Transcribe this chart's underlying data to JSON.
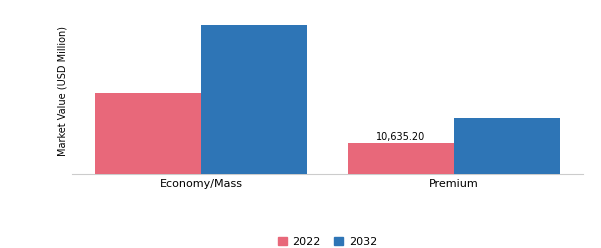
{
  "categories": [
    "Economy/Mass",
    "Premium"
  ],
  "values_2022": [
    28000,
    10635.2
  ],
  "values_2032": [
    52000,
    19500
  ],
  "annotation": "10,635.20",
  "annotation_category": 1,
  "color_2022": "#E8687A",
  "color_2032": "#2E75B6",
  "ylabel": "Market Value (USD Million)",
  "legend_2022": "2022",
  "legend_2032": "2032",
  "ylim": [
    0,
    58000
  ],
  "bar_width": 0.42,
  "background_color": "#FFFFFF"
}
